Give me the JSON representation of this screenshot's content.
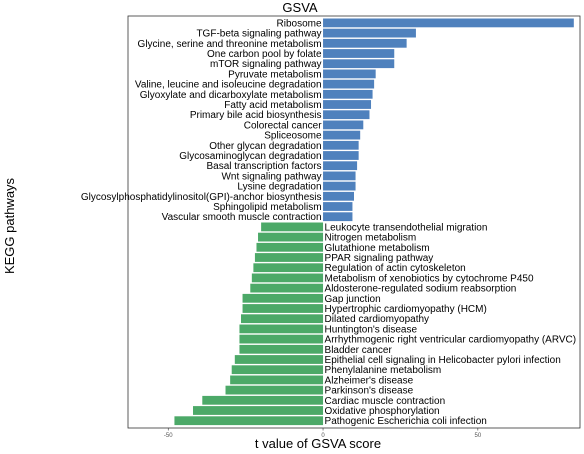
{
  "colors": {
    "positive": "#4F81BD",
    "negative": "#4CA968",
    "panel_border": "#333333",
    "background": "#ffffff"
  },
  "chart_data": {
    "type": "bar",
    "orientation": "horizontal",
    "title": "GSVA",
    "xlabel": "t value of GSVA score",
    "ylabel": "KEGG pathways",
    "xlim": [
      -63,
      83
    ],
    "x_ticks": [
      -50,
      0,
      50
    ],
    "x_tick_labels": [
      "-50",
      "0",
      "50"
    ],
    "grid": false,
    "legend": "none",
    "categories": [
      "Ribosome",
      "TGF-beta signaling pathway",
      "Glycine, serine and threonine metabolism",
      "One carbon pool by folate",
      "mTOR signaling pathway",
      "Pyruvate metabolism",
      "Valine, leucine and isoleucine degradation",
      "Glyoxylate and dicarboxylate metabolism",
      "Fatty acid metabolism",
      "Primary bile acid biosynthesis",
      "Colorectal cancer",
      "Spliceosome",
      "Other glycan degradation",
      "Glycosaminoglycan degradation",
      "Basal transcription factors",
      "Wnt signaling pathway",
      "Lysine degradation",
      "Glycosylphosphatidylinositol(GPI)-anchor biosynthesis",
      "Sphingolipid metabolism",
      "Vascular smooth muscle contraction",
      "Leukocyte transendothelial migration",
      "Nitrogen metabolism",
      "Glutathione metabolism",
      "PPAR signaling pathway",
      "Regulation of actin cytoskeleton",
      "Metabolism of xenobiotics by cytochrome P450",
      "Aldosterone-regulated sodium reabsorption",
      "Gap junction",
      "Hypertrophic cardiomyopathy (HCM)",
      "Dilated cardiomyopathy",
      "Huntington's disease",
      "Arrhythmogenic right ventricular cardiomyopathy (ARVC)",
      "Bladder cancer",
      "Epithelial cell signaling in Helicobacter pylori infection",
      "Phenylalanine metabolism",
      "Alzheimer's disease",
      "Parkinson's disease",
      "Cardiac muscle contraction",
      "Oxidative phosphorylation",
      "Pathogenic Escherichia coli infection"
    ],
    "values": [
      81,
      30,
      27,
      23,
      23,
      17,
      16.5,
      16,
      15.5,
      15,
      13,
      12,
      11.5,
      11.5,
      11,
      10.5,
      10.5,
      10,
      9.5,
      9.5,
      -20,
      -21,
      -21.5,
      -22,
      -22.5,
      -23,
      -23.5,
      -26,
      -26,
      -26.5,
      -27,
      -27,
      -27,
      -28.5,
      -29.5,
      -30,
      -31.5,
      -39,
      -42,
      -48
    ]
  }
}
